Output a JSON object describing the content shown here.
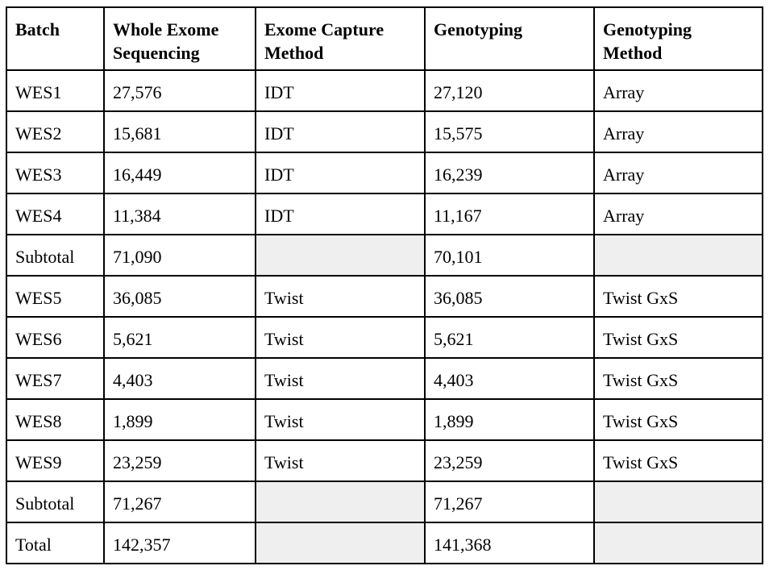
{
  "table": {
    "headers": [
      "Batch",
      "Whole Exome Sequencing",
      "Exome Capture Method",
      "Genotyping",
      "Genotyping Method"
    ],
    "rows": [
      {
        "batch": "WES1",
        "wes": "27,576",
        "capture": "IDT",
        "genotyping": "27,120",
        "geno_method": "Array"
      },
      {
        "batch": "WES2",
        "wes": "15,681",
        "capture": "IDT",
        "genotyping": "15,575",
        "geno_method": "Array"
      },
      {
        "batch": "WES3",
        "wes": "16,449",
        "capture": "IDT",
        "genotyping": "16,239",
        "geno_method": "Array"
      },
      {
        "batch": "WES4",
        "wes": "11,384",
        "capture": "IDT",
        "genotyping": "11,167",
        "geno_method": "Array"
      },
      {
        "batch": "Subtotal",
        "wes": "71,090",
        "capture": "",
        "genotyping": "70,101",
        "geno_method": ""
      },
      {
        "batch": "WES5",
        "wes": "36,085",
        "capture": "Twist",
        "genotyping": "36,085",
        "geno_method": "Twist GxS"
      },
      {
        "batch": "WES6",
        "wes": "5,621",
        "capture": "Twist",
        "genotyping": "5,621",
        "geno_method": "Twist GxS"
      },
      {
        "batch": "WES7",
        "wes": "4,403",
        "capture": "Twist",
        "genotyping": "4,403",
        "geno_method": "Twist GxS"
      },
      {
        "batch": "WES8",
        "wes": "1,899",
        "capture": "Twist",
        "genotyping": "1,899",
        "geno_method": "Twist GxS"
      },
      {
        "batch": "WES9",
        "wes": "23,259",
        "capture": "Twist",
        "genotyping": "23,259",
        "geno_method": "Twist GxS"
      },
      {
        "batch": "Subtotal",
        "wes": "71,267",
        "capture": "",
        "genotyping": "71,267",
        "geno_method": ""
      },
      {
        "batch": "Total",
        "wes": "142,357",
        "capture": "",
        "genotyping": "141,368",
        "geno_method": ""
      }
    ]
  },
  "colors": {
    "border": "#000000",
    "summary_fill": "#efefef",
    "background": "#ffffff"
  }
}
